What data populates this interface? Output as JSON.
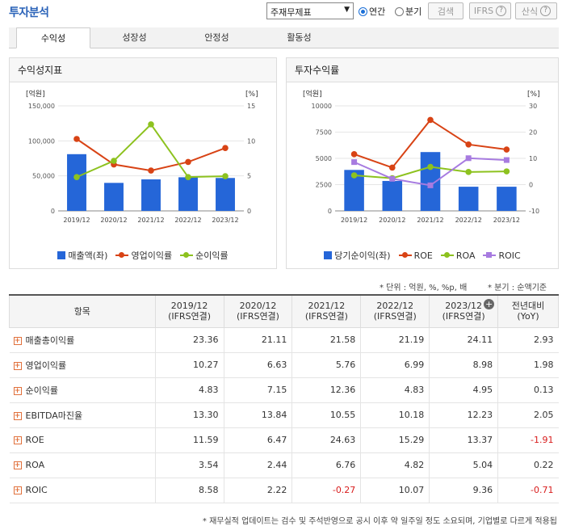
{
  "header": {
    "title": "투자분석",
    "select_value": "주재무제표",
    "radio_annual": "연간",
    "radio_quarter": "분기",
    "search_label": "검색",
    "ifrs_label": "IFRS",
    "calc_label": "산식"
  },
  "tabs": [
    "수익성",
    "성장성",
    "안정성",
    "활동성"
  ],
  "left_panel": {
    "title": "수익성지표"
  },
  "right_panel": {
    "title": "투자수익률"
  },
  "chart_data": [
    {
      "type": "bar",
      "title": "수익성지표",
      "left_unit": "[억원]",
      "right_unit": "[%]",
      "categories": [
        "2019/12",
        "2020/12",
        "2021/12",
        "2022/12",
        "2023/12"
      ],
      "left_ticks": [
        "150,000",
        "100,000",
        "50,000",
        "0"
      ],
      "right_ticks": [
        "15",
        "10",
        "5",
        "0"
      ],
      "left_range": [
        0,
        150000
      ],
      "right_range": [
        0,
        15
      ],
      "series": [
        {
          "name": "매출액(좌)",
          "type": "bar",
          "axis": "left",
          "color": "#2566d8",
          "values": [
            81000,
            40000,
            45000,
            48000,
            47000
          ]
        },
        {
          "name": "영업이익률",
          "type": "line",
          "axis": "right",
          "color": "#d84315",
          "values": [
            10.27,
            6.63,
            5.76,
            6.99,
            8.98
          ]
        },
        {
          "name": "순이익률",
          "type": "line",
          "axis": "right",
          "color": "#8dc21f",
          "values": [
            4.83,
            7.15,
            12.36,
            4.83,
            4.95
          ]
        }
      ]
    },
    {
      "type": "bar",
      "title": "투자수익률",
      "left_unit": "[억원]",
      "right_unit": "[%]",
      "categories": [
        "2019/12",
        "2020/12",
        "2021/12",
        "2022/12",
        "2023/12"
      ],
      "left_ticks": [
        "10000",
        "7500",
        "5000",
        "2500",
        "0"
      ],
      "right_ticks": [
        "30",
        "20",
        "10",
        "0",
        "-10"
      ],
      "left_range": [
        0,
        10000
      ],
      "right_range": [
        -10,
        30
      ],
      "series": [
        {
          "name": "당기순이익(좌)",
          "type": "bar",
          "axis": "left",
          "color": "#2566d8",
          "values": [
            3900,
            2850,
            5600,
            2300,
            2300
          ]
        },
        {
          "name": "ROE",
          "type": "line",
          "axis": "right",
          "color": "#d84315",
          "values": [
            11.59,
            6.47,
            24.63,
            15.29,
            13.37
          ]
        },
        {
          "name": "ROA",
          "type": "line",
          "axis": "right",
          "color": "#8dc21f",
          "values": [
            3.54,
            2.44,
            6.76,
            4.82,
            5.04
          ]
        },
        {
          "name": "ROIC",
          "type": "line",
          "axis": "right",
          "color": "#a77be0",
          "marker": "square",
          "values": [
            8.58,
            2.22,
            -0.27,
            10.07,
            9.36
          ]
        }
      ]
    }
  ],
  "notes": {
    "unit": "* 단위 : 억원, %, %p, 배",
    "quarter": "* 분기 : 순액기준"
  },
  "table": {
    "header_item": "항목",
    "columns": [
      {
        "year": "2019/12",
        "basis": "(IFRS연결)"
      },
      {
        "year": "2020/12",
        "basis": "(IFRS연결)"
      },
      {
        "year": "2021/12",
        "basis": "(IFRS연결)"
      },
      {
        "year": "2022/12",
        "basis": "(IFRS연결)"
      },
      {
        "year": "2023/12",
        "basis": "(IFRS연결)"
      }
    ],
    "yoy_header": {
      "line1": "전년대비",
      "line2": "(YoY)"
    },
    "rows": [
      {
        "label": "매출총이익률",
        "values": [
          "23.36",
          "21.11",
          "21.58",
          "21.19",
          "24.11"
        ],
        "yoy": "2.93"
      },
      {
        "label": "영업이익률",
        "values": [
          "10.27",
          "6.63",
          "5.76",
          "6.99",
          "8.98"
        ],
        "yoy": "1.98"
      },
      {
        "label": "순이익률",
        "values": [
          "4.83",
          "7.15",
          "12.36",
          "4.83",
          "4.95"
        ],
        "yoy": "0.13"
      },
      {
        "label": "EBITDA마진율",
        "values": [
          "13.30",
          "13.84",
          "10.55",
          "10.18",
          "12.23"
        ],
        "yoy": "2.05"
      },
      {
        "label": "ROE",
        "values": [
          "11.59",
          "6.47",
          "24.63",
          "15.29",
          "13.37"
        ],
        "yoy": "-1.91"
      },
      {
        "label": "ROA",
        "values": [
          "3.54",
          "2.44",
          "6.76",
          "4.82",
          "5.04"
        ],
        "yoy": "0.22"
      },
      {
        "label": "ROIC",
        "values": [
          "8.58",
          "2.22",
          "-0.27",
          "10.07",
          "9.36"
        ],
        "yoy": "-0.71"
      }
    ]
  },
  "footnote": "* 재무실적 업데이트는 검수 및 주석반영으로 공시 이후 약 일주일 정도 소요되며, 기업별로 다르게 적용됩"
}
